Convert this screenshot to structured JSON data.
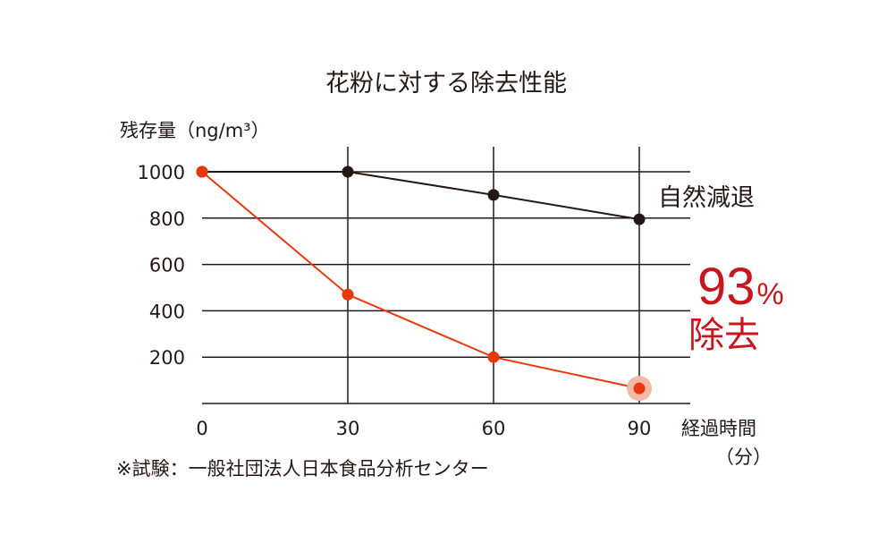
{
  "chart_data": {
    "type": "line",
    "title": "花粉に対する除去性能",
    "ylabel": "残存量（ng/m³）",
    "xlabel": "経過時間",
    "xunit": "（分）",
    "x": [
      0,
      30,
      60,
      90
    ],
    "xticks": [
      "0",
      "30",
      "60",
      "90"
    ],
    "yticks": [
      "200",
      "400",
      "600",
      "800",
      "1000"
    ],
    "ylim": [
      0,
      1000
    ],
    "xlim": [
      0,
      90
    ],
    "grid": true,
    "series": [
      {
        "name": "自然減退",
        "values": [
          1000,
          1000,
          900,
          795
        ],
        "color": "#231815"
      },
      {
        "values": [
          1000,
          470,
          200,
          65
        ],
        "color": "#e8380d"
      }
    ],
    "annotations": {
      "removal_value": "93",
      "removal_unit": "%",
      "removal_word": "除去",
      "removal_color": "#c8161d",
      "highlight_color": "#f4b9a6"
    },
    "note": "※試験：一般社団法人日本食品分析センター"
  }
}
